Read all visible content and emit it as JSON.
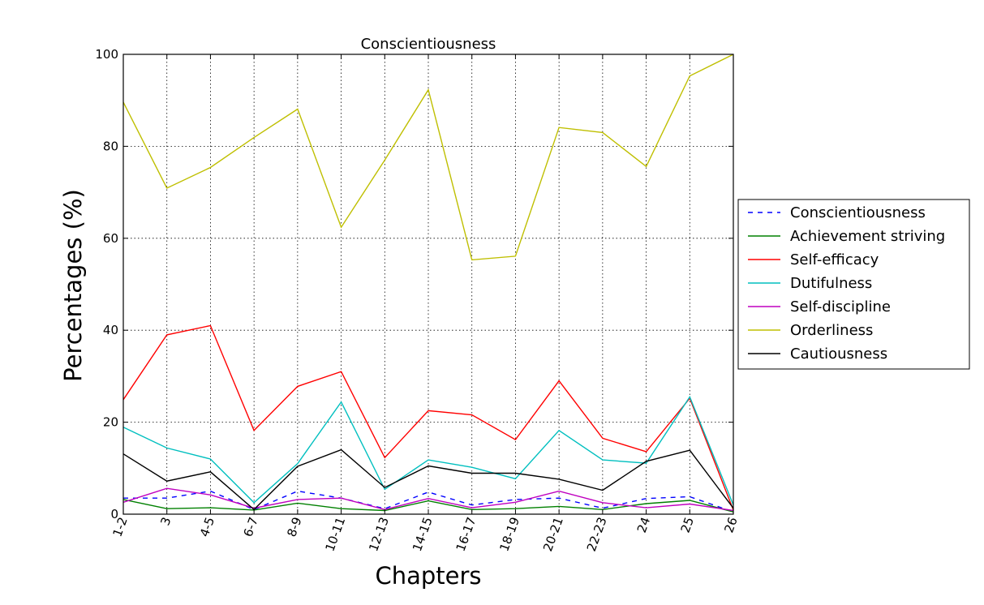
{
  "chart_data": {
    "type": "line",
    "title": "Conscientiousness",
    "xlabel": "Chapters",
    "ylabel": "Percentages (%)",
    "ylim": [
      0,
      100
    ],
    "yticks": [
      0,
      20,
      40,
      60,
      80,
      100
    ],
    "grid": true,
    "legend_position": "right",
    "categories": [
      "1-2",
      "3",
      "4-5",
      "6-7",
      "8-9",
      "10-11",
      "12-13",
      "14-15",
      "16-17",
      "18-19",
      "20-21",
      "22-23",
      "24",
      "25",
      "26"
    ],
    "series": [
      {
        "name": "Conscientiousness",
        "color": "#0000ff",
        "dashed": true,
        "values": [
          3.5,
          3.5,
          5.0,
          1.0,
          5.0,
          3.5,
          1.2,
          4.8,
          2.0,
          3.2,
          3.5,
          1.3,
          3.4,
          3.8,
          0.5
        ]
      },
      {
        "name": "Achievement striving",
        "color": "#008000",
        "dashed": false,
        "values": [
          3.2,
          1.2,
          1.4,
          0.9,
          2.4,
          1.2,
          0.8,
          2.9,
          1.0,
          1.2,
          1.7,
          1.0,
          2.3,
          3.0,
          0.5
        ]
      },
      {
        "name": "Self-efficacy",
        "color": "#ff0000",
        "dashed": false,
        "values": [
          24.9,
          39.0,
          41.0,
          18.2,
          27.8,
          31.0,
          12.3,
          22.5,
          21.6,
          16.2,
          29.0,
          16.5,
          13.6,
          25.2,
          0.9
        ]
      },
      {
        "name": "Dutifulness",
        "color": "#00bfbf",
        "dashed": false,
        "values": [
          18.9,
          14.4,
          12.0,
          2.5,
          11.0,
          24.4,
          5.4,
          11.8,
          10.2,
          7.7,
          18.2,
          11.8,
          11.1,
          25.5,
          2.0
        ]
      },
      {
        "name": "Self-discipline",
        "color": "#bf00bf",
        "dashed": false,
        "values": [
          2.6,
          5.6,
          4.2,
          1.3,
          3.2,
          3.5,
          1.0,
          3.4,
          1.4,
          2.6,
          5.0,
          2.5,
          1.4,
          2.2,
          0.8
        ]
      },
      {
        "name": "Orderliness",
        "color": "#bfbf00",
        "dashed": false,
        "values": [
          89.6,
          70.9,
          75.4,
          81.9,
          88.1,
          62.4,
          77.0,
          92.3,
          55.3,
          56.1,
          84.1,
          83.0,
          75.6,
          95.3,
          100.0
        ]
      },
      {
        "name": "Cautiousness",
        "color": "#000000",
        "dashed": false,
        "values": [
          13.1,
          7.2,
          9.2,
          1.0,
          10.4,
          14.0,
          5.8,
          10.5,
          8.9,
          8.9,
          7.6,
          5.2,
          11.5,
          13.9,
          1.3
        ]
      }
    ]
  }
}
